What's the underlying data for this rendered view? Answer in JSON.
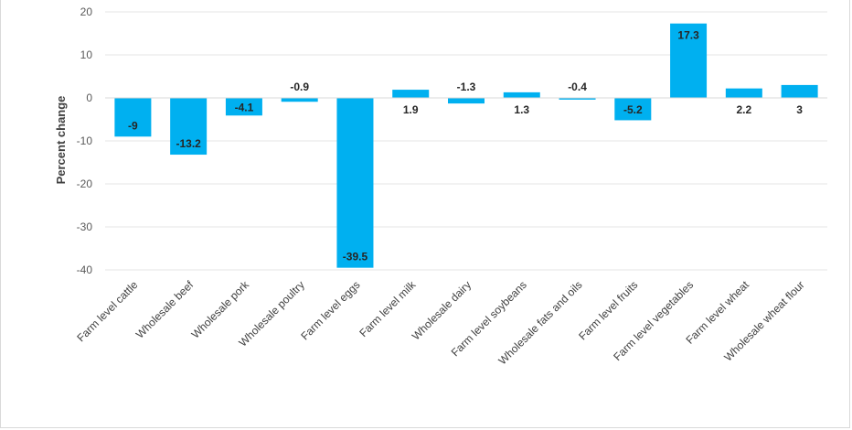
{
  "chart_data": {
    "type": "bar",
    "title": "",
    "xlabel": "",
    "ylabel": "Percent change",
    "ylim": [
      -40,
      20
    ],
    "yticks": [
      20,
      10,
      0,
      -10,
      -20,
      -30,
      -40
    ],
    "grid": true,
    "legend": "none",
    "bar_color": "#00b0f0",
    "categories": [
      "Farm level cattle",
      "Wholesale beef",
      "Wholesale pork",
      "Wholesale poultry",
      "Farm level eggs",
      "Farm level milk",
      "Wholesale dairy",
      "Farm level soybeans",
      "Wholesale fats and oils",
      "Farm level fruits",
      "Farm level vegetables",
      "Farm level wheat",
      "Wholesale wheat flour"
    ],
    "values": [
      -9,
      -13.2,
      -4.1,
      -0.9,
      -39.5,
      1.9,
      -1.3,
      1.3,
      -0.4,
      -5.2,
      17.3,
      2.2,
      3
    ]
  }
}
